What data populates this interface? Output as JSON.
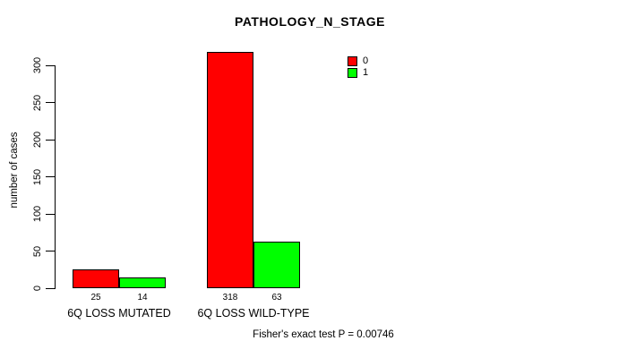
{
  "chart_data": {
    "type": "bar",
    "title": "PATHOLOGY_N_STAGE",
    "ylabel": "number of cases",
    "xlabel": "",
    "categories": [
      "6Q LOSS MUTATED",
      "6Q LOSS WILD-TYPE"
    ],
    "series": [
      {
        "name": "0",
        "color": "#ff0000",
        "values": [
          25,
          318
        ]
      },
      {
        "name": "1",
        "color": "#00ff00",
        "values": [
          14,
          63
        ]
      }
    ],
    "yticks": [
      0,
      50,
      100,
      150,
      200,
      250,
      300
    ],
    "ylim": [
      0,
      330
    ],
    "grid": false,
    "legend_position": "top-right",
    "legend_entries": [
      {
        "label": "0",
        "color": "#ff0000"
      },
      {
        "label": "1",
        "color": "#00ff00"
      }
    ],
    "footer": "Fisher's exact test P = 0.00746"
  }
}
